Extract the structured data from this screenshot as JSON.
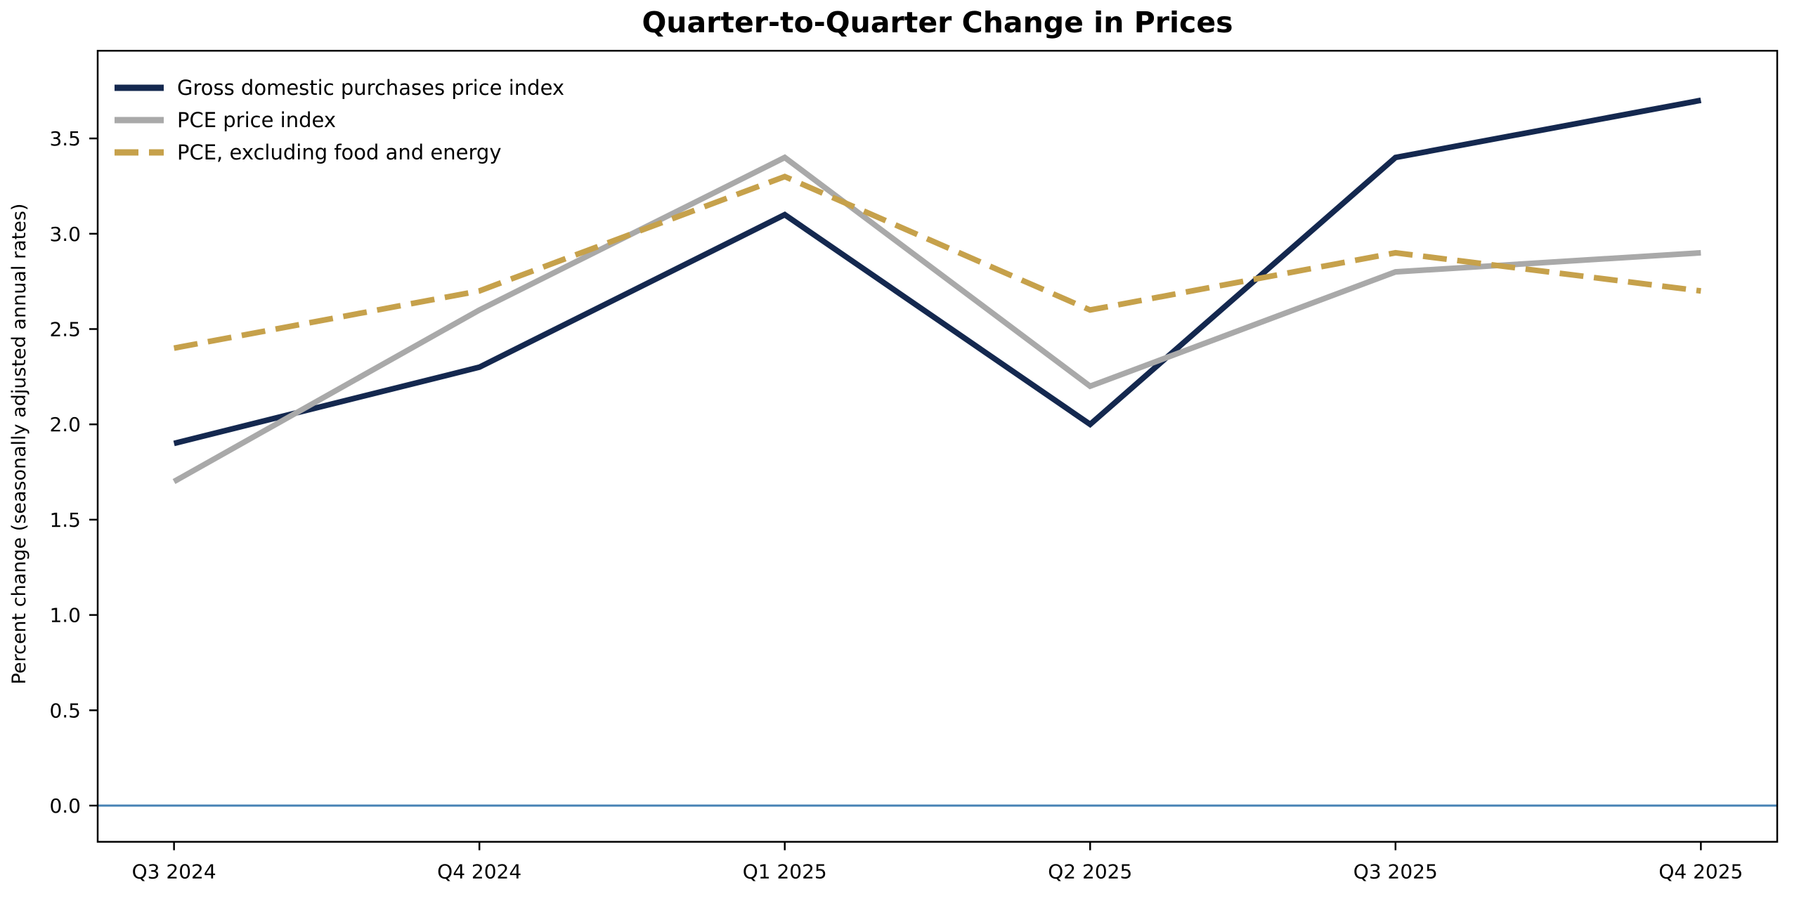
{
  "chart_data": {
    "type": "line",
    "title": "Quarter-to-Quarter Change in Prices",
    "xlabel": "",
    "ylabel": "Percent change (seasonally adjusted annual rates)",
    "categories": [
      "Q3 2024",
      "Q4 2024",
      "Q1 2025",
      "Q2 2025",
      "Q3 2025",
      "Q4 2025"
    ],
    "series": [
      {
        "name": "Gross domestic purchases price index",
        "color": "#14284F",
        "style": "solid",
        "values": [
          1.9,
          2.3,
          3.1,
          2.0,
          3.4,
          3.7
        ]
      },
      {
        "name": "PCE price index",
        "color": "#A9A9A9",
        "style": "solid",
        "values": [
          1.7,
          2.6,
          3.4,
          2.2,
          2.8,
          2.9
        ]
      },
      {
        "name": "PCE, excluding food and energy",
        "color": "#C6A14B",
        "style": "dashed",
        "values": [
          2.4,
          2.7,
          3.3,
          2.6,
          2.9,
          2.7
        ]
      }
    ],
    "ytick_labels": [
      "0.0",
      "0.5",
      "1.0",
      "1.5",
      "2.0",
      "2.5",
      "3.0",
      "3.5"
    ],
    "yticks": [
      0.0,
      0.5,
      1.0,
      1.5,
      2.0,
      2.5,
      3.0,
      3.5
    ],
    "ylim": [
      -0.19,
      3.96
    ],
    "zero_line": {
      "value": 0.0,
      "color": "#4682B4"
    },
    "axis_color": "#000000",
    "legend_position": "upper-left",
    "grid": false
  }
}
